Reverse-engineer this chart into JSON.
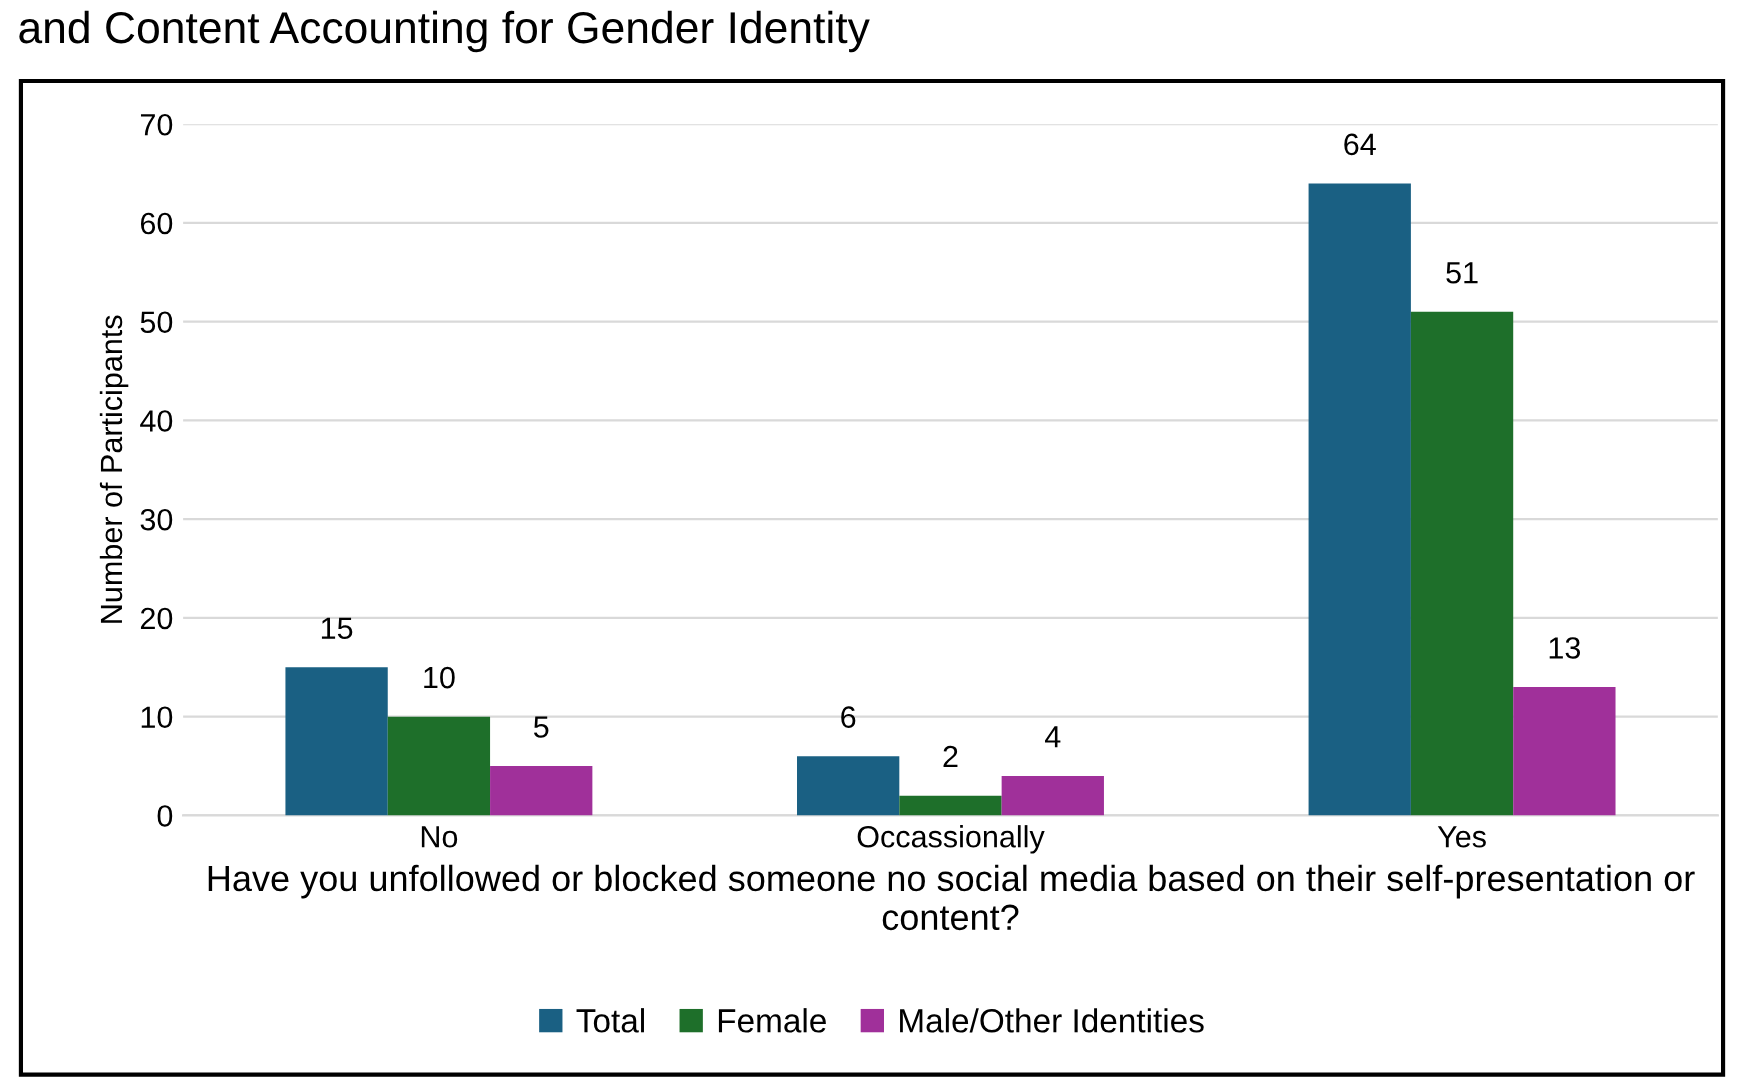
{
  "chart_data": {
    "type": "bar",
    "title": "and Content Accounting for Gender Identity",
    "xlabel": "Have you unfollowed or blocked someone no social media based on their self-presentation or content?",
    "ylabel": "Number of Participants",
    "categories": [
      "No",
      "Occassionally",
      "Yes"
    ],
    "series": [
      {
        "name": "Total",
        "color": "#1a6083",
        "values": [
          15,
          6,
          64
        ]
      },
      {
        "name": "Female",
        "color": "#1e6f2a",
        "values": [
          10,
          2,
          51
        ]
      },
      {
        "name": "Male/Other Identities",
        "color": "#a0309a",
        "values": [
          5,
          4,
          13
        ]
      }
    ],
    "ylim": [
      0,
      70
    ],
    "yticks": [
      0,
      10,
      20,
      30,
      40,
      50,
      60,
      70
    ],
    "grid": "y",
    "legend": "bottom",
    "data_labels": true
  }
}
